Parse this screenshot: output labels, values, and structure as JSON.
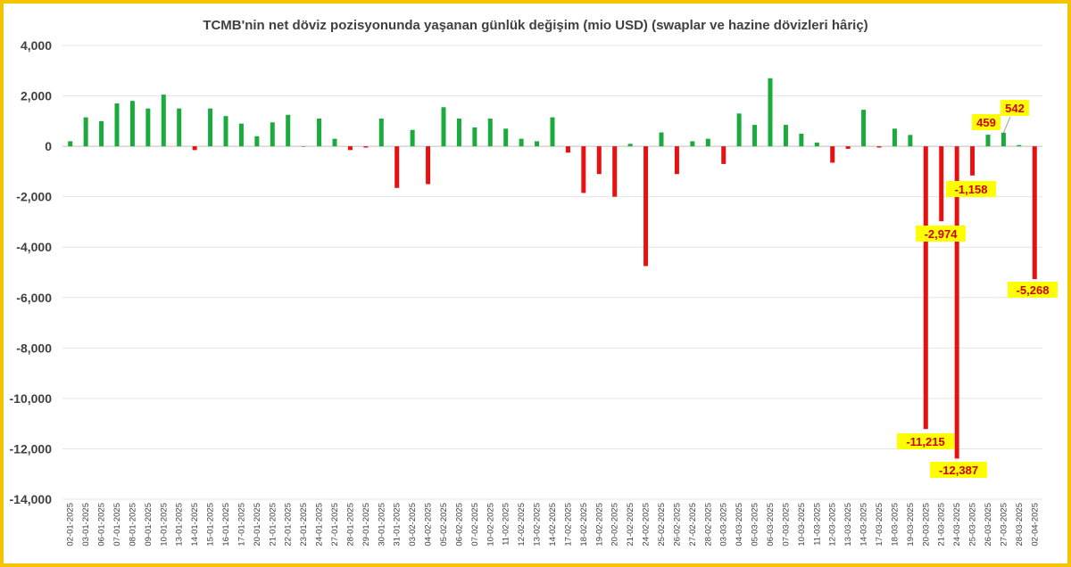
{
  "chart_data": {
    "type": "bar",
    "title": "TCMB'nin net döviz pozisyonunda yaşanan günlük değişim (mio USD) (swaplar ve hazine dövizleri hâriç)",
    "xlabel": "",
    "ylabel": "",
    "ylim": [
      -14000,
      4000
    ],
    "yticks": [
      4000,
      2000,
      0,
      -2000,
      -4000,
      -6000,
      -8000,
      -10000,
      -12000,
      -14000
    ],
    "ytick_labels": [
      "4,000",
      "2,000",
      "0",
      "-2,000",
      "-4,000",
      "-6,000",
      "-8,000",
      "-10,000",
      "-12,000",
      "-14,000"
    ],
    "grid": true,
    "legend": "none",
    "colors": {
      "positive": "#1aab3c",
      "negative": "#e81010",
      "label_bg": "#ffff00",
      "label_text": "#d00000",
      "frame": "#f5c400"
    },
    "categories": [
      "02-01-2025",
      "03-01-2025",
      "06-01-2025",
      "07-01-2025",
      "08-01-2025",
      "09-01-2025",
      "10-01-2025",
      "13-01-2025",
      "14-01-2025",
      "15-01-2025",
      "16-01-2025",
      "17-01-2025",
      "20-01-2025",
      "21-01-2025",
      "22-01-2025",
      "23-01-2025",
      "24-01-2025",
      "27-01-2025",
      "28-01-2025",
      "29-01-2025",
      "30-01-2025",
      "31-01-2025",
      "03-02-2025",
      "04-02-2025",
      "05-02-2025",
      "06-02-2025",
      "07-02-2025",
      "10-02-2025",
      "11-02-2025",
      "12-02-2025",
      "13-02-2025",
      "14-02-2025",
      "17-02-2025",
      "18-02-2025",
      "19-02-2025",
      "20-02-2025",
      "21-02-2025",
      "24-02-2025",
      "25-02-2025",
      "26-02-2025",
      "27-02-2025",
      "28-02-2025",
      "03-03-2025",
      "04-03-2025",
      "05-03-2025",
      "06-03-2025",
      "07-03-2025",
      "10-03-2025",
      "11-03-2025",
      "12-03-2025",
      "13-03-2025",
      "14-03-2025",
      "17-03-2025",
      "18-03-2025",
      "19-03-2025",
      "20-03-2025",
      "21-03-2025",
      "24-03-2025",
      "25-03-2025",
      "26-03-2025",
      "27-03-2025",
      "28-03-2025",
      "02-04-2025"
    ],
    "values": [
      200,
      1150,
      1000,
      1700,
      1800,
      1500,
      2050,
      1500,
      -150,
      1500,
      1200,
      900,
      400,
      950,
      1250,
      0,
      1100,
      300,
      -150,
      -50,
      1100,
      -1650,
      650,
      -1500,
      1550,
      1100,
      750,
      1100,
      700,
      300,
      200,
      1150,
      -250,
      -1850,
      -1100,
      -2000,
      100,
      -4750,
      550,
      -1100,
      200,
      300,
      -700,
      1300,
      850,
      2700,
      850,
      500,
      150,
      -650,
      -100,
      1450,
      -50,
      700,
      450,
      -11215,
      -2974,
      -12387,
      -1158,
      459,
      542,
      50,
      -5268
    ],
    "data_labels": [
      {
        "category": "20-03-2025",
        "text": "-11,215"
      },
      {
        "category": "21-03-2025",
        "text": "-2,974"
      },
      {
        "category": "24-03-2025",
        "text": "-12,387"
      },
      {
        "category": "25-03-2025",
        "text": "-1,158"
      },
      {
        "category": "26-03-2025",
        "text": "459"
      },
      {
        "category": "27-03-2025",
        "text": "542"
      },
      {
        "category": "02-04-2025",
        "text": "-5,268"
      }
    ]
  }
}
